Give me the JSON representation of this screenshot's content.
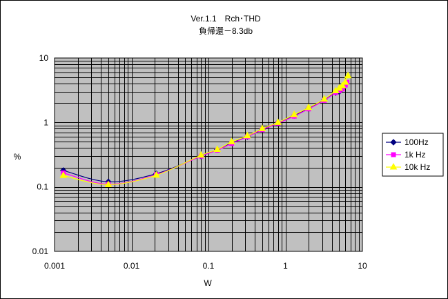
{
  "chart_data": {
    "type": "line",
    "title": "Ver.1.1　Rch･THD",
    "subtitle": "負帰還－8.3db",
    "xlabel": "W",
    "ylabel": "%",
    "x_scale": "log",
    "y_scale": "log",
    "xlim": [
      0.001,
      10
    ],
    "ylim": [
      0.01,
      10
    ],
    "x_ticks": [
      "0.001",
      "0.01",
      "0.1",
      "1",
      "10"
    ],
    "y_ticks": [
      "0.01",
      "0.1",
      "1",
      "10"
    ],
    "grid": true,
    "plot_background": "#c0c0c0",
    "legend_position": "right",
    "series": [
      {
        "name": "100Hz",
        "color": "#000080",
        "marker": "diamond",
        "x": [
          0.0013,
          0.005,
          0.021,
          0.08,
          0.13,
          0.2,
          0.32,
          0.5,
          0.8,
          1.3,
          2.0,
          3.2,
          4.5,
          5.0,
          5.6
        ],
        "y": [
          0.18,
          0.12,
          0.16,
          0.3,
          0.38,
          0.48,
          0.6,
          0.78,
          1.0,
          1.28,
          1.65,
          2.25,
          2.9,
          3.0,
          3.4
        ]
      },
      {
        "name": "1k Hz",
        "color": "#ff00ff",
        "marker": "square",
        "x": [
          0.0013,
          0.005,
          0.021,
          0.08,
          0.13,
          0.2,
          0.32,
          0.5,
          0.8,
          1.3,
          2.0,
          3.2,
          4.5,
          5.0,
          5.5,
          6.0,
          6.3
        ],
        "y": [
          0.165,
          0.11,
          0.155,
          0.3,
          0.37,
          0.47,
          0.6,
          0.77,
          0.97,
          1.25,
          1.62,
          2.2,
          2.9,
          3.1,
          3.3,
          3.8,
          4.2
        ]
      },
      {
        "name": "10k Hz",
        "color": "#ffff00",
        "marker": "triangle",
        "x": [
          0.0013,
          0.005,
          0.021,
          0.08,
          0.13,
          0.2,
          0.32,
          0.5,
          0.8,
          1.3,
          2.0,
          3.2,
          4.5,
          5.0,
          5.5,
          6.0,
          6.5
        ],
        "y": [
          0.15,
          0.108,
          0.152,
          0.31,
          0.38,
          0.5,
          0.62,
          0.8,
          1.0,
          1.32,
          1.7,
          2.3,
          3.1,
          3.4,
          3.7,
          4.2,
          5.3
        ]
      }
    ]
  }
}
